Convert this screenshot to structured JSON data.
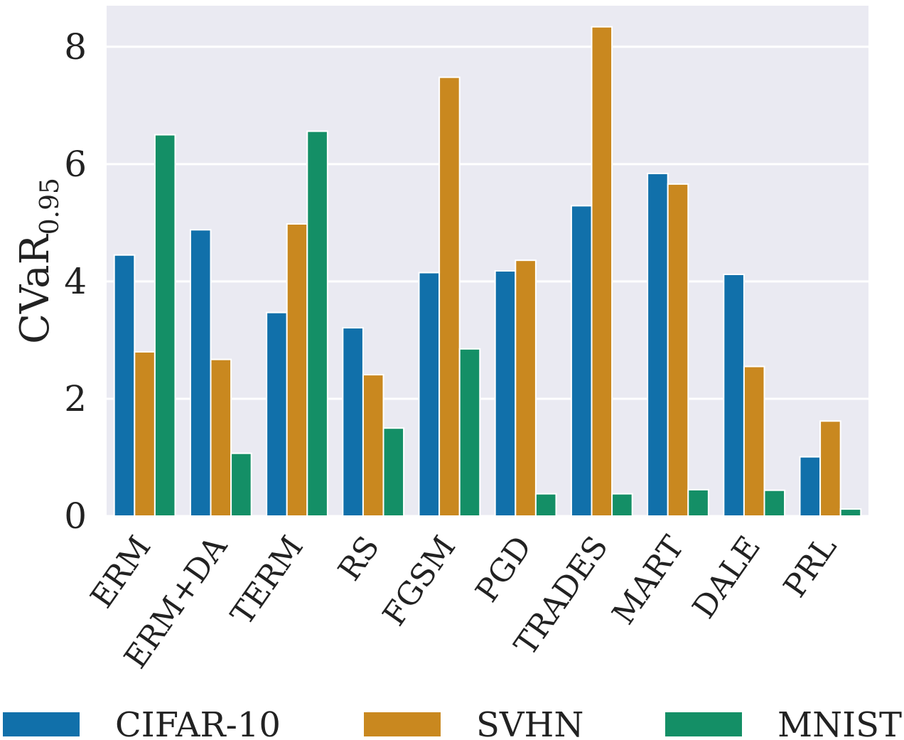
{
  "chart_data": {
    "type": "bar",
    "title": "",
    "xlabel": "",
    "ylabel": "CVaR",
    "ylabel_subscript": "0.95",
    "ylim": [
      0,
      8.7
    ],
    "yticks": [
      "0",
      "2",
      "4",
      "6",
      "8"
    ],
    "grid": true,
    "legend_position": "bottom",
    "categories": [
      "ERM",
      "ERM+DA",
      "TERM",
      "RS",
      "FGSM",
      "PGD",
      "TRADES",
      "MART",
      "DALE",
      "PRL"
    ],
    "series": [
      {
        "name": "CIFAR-10",
        "color": "#1170aa",
        "values": [
          4.45,
          4.88,
          3.47,
          3.21,
          4.15,
          4.18,
          5.29,
          5.84,
          4.12,
          1.01
        ]
      },
      {
        "name": "SVHN",
        "color": "#c9881f",
        "values": [
          2.8,
          2.67,
          4.98,
          2.41,
          7.48,
          4.36,
          8.34,
          5.66,
          2.55,
          1.62
        ]
      },
      {
        "name": "MNIST",
        "color": "#148f66",
        "values": [
          6.5,
          1.07,
          6.56,
          1.5,
          2.85,
          0.38,
          0.38,
          0.45,
          0.44,
          0.12
        ]
      }
    ]
  }
}
